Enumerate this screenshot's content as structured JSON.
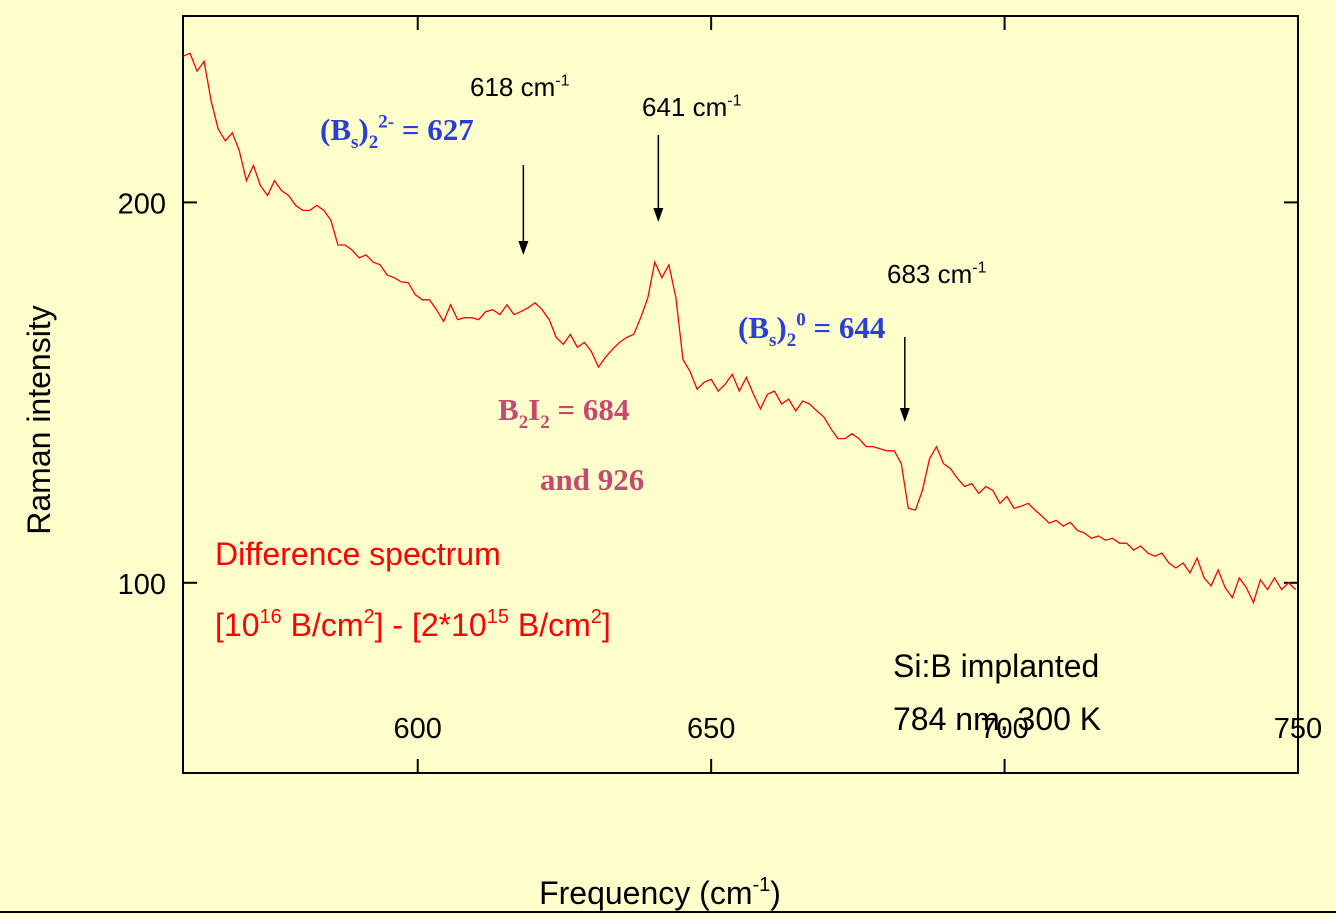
{
  "chart_data": {
    "type": "line",
    "x_label": {
      "parts": [
        {
          "t": "Frequency (cm"
        },
        {
          "sup": "-1"
        },
        {
          "t": ")"
        }
      ]
    },
    "y_label": "Raman intensity",
    "xlim": [
      560,
      750
    ],
    "xticks": [
      600,
      650,
      700,
      750
    ],
    "ylim": [
      50,
      249
    ],
    "yticks": [
      100,
      200
    ],
    "color": "#ff0000",
    "x": [
      560,
      561.2,
      562.4,
      563.6,
      564.8,
      566,
      567.2,
      568.4,
      569.6,
      570.8,
      572,
      573.2,
      574.4,
      575.6,
      576.8,
      578,
      579.2,
      580.4,
      581.6,
      582.8,
      584,
      585.2,
      586.4,
      587.6,
      588.8,
      590,
      591.2,
      592.4,
      593.6,
      594.8,
      596,
      597.2,
      598.4,
      599.6,
      600.8,
      602,
      603.2,
      604.4,
      605.6,
      606.8,
      608,
      609.2,
      610.4,
      611.6,
      612.8,
      614,
      615.2,
      616.4,
      617.6,
      618.8,
      620,
      621.2,
      622.4,
      623.6,
      624.8,
      626,
      627.2,
      628.4,
      629.6,
      630.8,
      632,
      633.2,
      634.4,
      635.6,
      636.8,
      638,
      639.2,
      640.4,
      641.6,
      642.8,
      644,
      645.2,
      646.4,
      647.6,
      648.8,
      650,
      651.2,
      652.4,
      653.6,
      654.8,
      656,
      657.2,
      658.4,
      659.6,
      660.8,
      662,
      663.2,
      664.4,
      665.6,
      666.8,
      668,
      669.2,
      670.4,
      671.6,
      672.8,
      674,
      675.2,
      676.4,
      677.6,
      678.8,
      680,
      681.2,
      682.4,
      683.6,
      684.8,
      686,
      687.2,
      688.4,
      689.6,
      690.8,
      692,
      693.2,
      694.4,
      695.6,
      696.8,
      698,
      699.2,
      700.4,
      701.6,
      702.8,
      704,
      705.2,
      706.4,
      707.6,
      708.8,
      710,
      711.2,
      712.4,
      713.6,
      714.8,
      716,
      717.2,
      718.4,
      719.6,
      720.8,
      722,
      723.2,
      724.4,
      725.6,
      726.8,
      728,
      729.2,
      730.4,
      731.6,
      732.8,
      734,
      735.2,
      736.4,
      737.6,
      738.8,
      740,
      741.2,
      742.4,
      743.6,
      744.8,
      746,
      747.2,
      748.4,
      749.6
    ],
    "values": [
      238.4,
      239.2,
      234.5,
      237.1,
      226.6,
      219.3,
      216.2,
      218.3,
      213.6,
      205.7,
      209.7,
      204.4,
      201.8,
      205.7,
      203.1,
      201.8,
      199.2,
      197.9,
      197.9,
      199.2,
      197.9,
      195.3,
      188.8,
      188.8,
      187.5,
      185.4,
      186.2,
      184.3,
      183.6,
      180.9,
      180.2,
      179.1,
      178.9,
      175.7,
      174.4,
      174.4,
      171.8,
      168.7,
      173.1,
      169.2,
      169.7,
      169.7,
      169.2,
      171.3,
      171.8,
      170.5,
      173.1,
      170.5,
      171.3,
      172.3,
      173.6,
      171.8,
      169.2,
      164.5,
      162.7,
      165.3,
      161.9,
      163.2,
      160.8,
      156.7,
      159.3,
      161.4,
      163.2,
      164.5,
      165.3,
      169.7,
      174.9,
      184.3,
      180.2,
      183.6,
      174.9,
      158.7,
      155.6,
      150.9,
      152.7,
      153.5,
      150.4,
      152.2,
      154.8,
      150.4,
      154.0,
      149.6,
      145.7,
      149.6,
      150.4,
      147.0,
      148.3,
      145.2,
      147.8,
      147.0,
      145.2,
      143.6,
      140.5,
      137.9,
      137.9,
      139.2,
      137.9,
      135.8,
      135.8,
      135.2,
      134.7,
      134.7,
      131.3,
      119.6,
      119.1,
      124.3,
      132.6,
      135.8,
      131.3,
      130.0,
      127.4,
      125.3,
      126.1,
      123.5,
      125.3,
      124.3,
      120.9,
      122.7,
      119.6,
      120.1,
      120.9,
      119.1,
      117.5,
      115.7,
      116.4,
      114.9,
      115.9,
      113.8,
      113.1,
      111.7,
      112.3,
      111.2,
      111.7,
      110.4,
      110.4,
      108.6,
      109.7,
      107.8,
      107.0,
      107.8,
      105.2,
      103.9,
      105.2,
      102.6,
      106.5,
      101.3,
      99.2,
      103.4,
      98.7,
      96.1,
      101.3,
      98.7,
      94.8,
      100.8,
      98.2,
      101.3,
      98.2,
      100.0,
      98.2
    ],
    "arrows": [
      618,
      641,
      683
    ],
    "annotations": [
      {
        "color": "#000000",
        "parts": [
          {
            "t": "618 cm"
          },
          {
            "sup": "-1"
          }
        ]
      },
      {
        "color": "#000000",
        "parts": [
          {
            "t": "641 cm"
          },
          {
            "sup": "-1"
          }
        ]
      },
      {
        "color": "#000000",
        "parts": [
          {
            "t": "683 cm"
          },
          {
            "sup": "-1"
          }
        ]
      },
      {
        "color": "#2a3fd6",
        "parts": [
          {
            "t": "(B"
          },
          {
            "sub": "s"
          },
          {
            "t": ")"
          },
          {
            "sub": "2"
          },
          {
            "sup": "2-"
          },
          {
            "t": " = 627"
          }
        ]
      },
      {
        "color": "#2a3fd6",
        "parts": [
          {
            "t": "(B"
          },
          {
            "sub": "s"
          },
          {
            "t": ")"
          },
          {
            "sub": "2"
          },
          {
            "sup": "0"
          },
          {
            "t": " = 644"
          }
        ]
      },
      {
        "color": "#c44a72",
        "parts": [
          {
            "t": "B"
          },
          {
            "sub": "2"
          },
          {
            "t": "I"
          },
          {
            "sub": "2"
          },
          {
            "t": " = 684"
          }
        ]
      },
      {
        "color": "#c44a72",
        "parts": [
          {
            "t": "and 926"
          }
        ]
      },
      {
        "color": "#ff0000",
        "parts": [
          {
            "t": "Difference spectrum"
          }
        ]
      },
      {
        "color": "#ff0000",
        "parts": [
          {
            "t": "[10"
          },
          {
            "sup": "16"
          },
          {
            "t": " B/cm"
          },
          {
            "sup": "2"
          },
          {
            "t": "] - [2*10"
          },
          {
            "sup": "15"
          },
          {
            "t": " B/cm"
          },
          {
            "sup": "2"
          },
          {
            "t": "]"
          }
        ]
      },
      {
        "color": "#000000",
        "parts": [
          {
            "t": "Si:B implanted"
          }
        ]
      },
      {
        "color": "#000000",
        "parts": [
          {
            "t": "784 nm, 300 K"
          }
        ]
      }
    ]
  }
}
